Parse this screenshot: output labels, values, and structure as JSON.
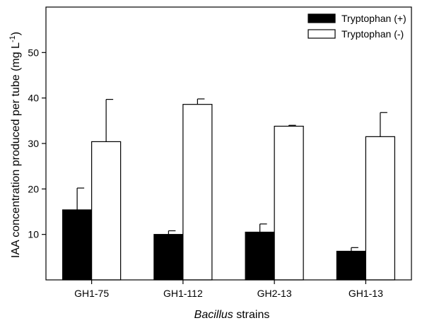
{
  "chart_data": {
    "type": "bar",
    "title": "",
    "xlabel": {
      "italic": "Bacillus",
      "rest": " strains"
    },
    "ylabel": {
      "main": "IAA concentration produced per tube (mg L",
      "sup": "-1",
      "close": ")"
    },
    "categories": [
      "GH1-75",
      "GH1-112",
      "GH2-13",
      "GH1-13"
    ],
    "ylim": [
      0,
      60
    ],
    "yticks": [
      10,
      20,
      30,
      40,
      50
    ],
    "legend_position": "top-right",
    "grid": false,
    "series": [
      {
        "name": "Tryptophan (+)",
        "fill": "#000000",
        "values": [
          15.4,
          10.0,
          10.5,
          6.3
        ],
        "errors": [
          4.8,
          0.8,
          1.8,
          0.8
        ]
      },
      {
        "name": "Tryptophan (-)",
        "fill": "#ffffff",
        "values": [
          30.4,
          38.6,
          33.8,
          31.5
        ],
        "errors": [
          9.3,
          1.2,
          0.2,
          5.3
        ]
      }
    ]
  }
}
